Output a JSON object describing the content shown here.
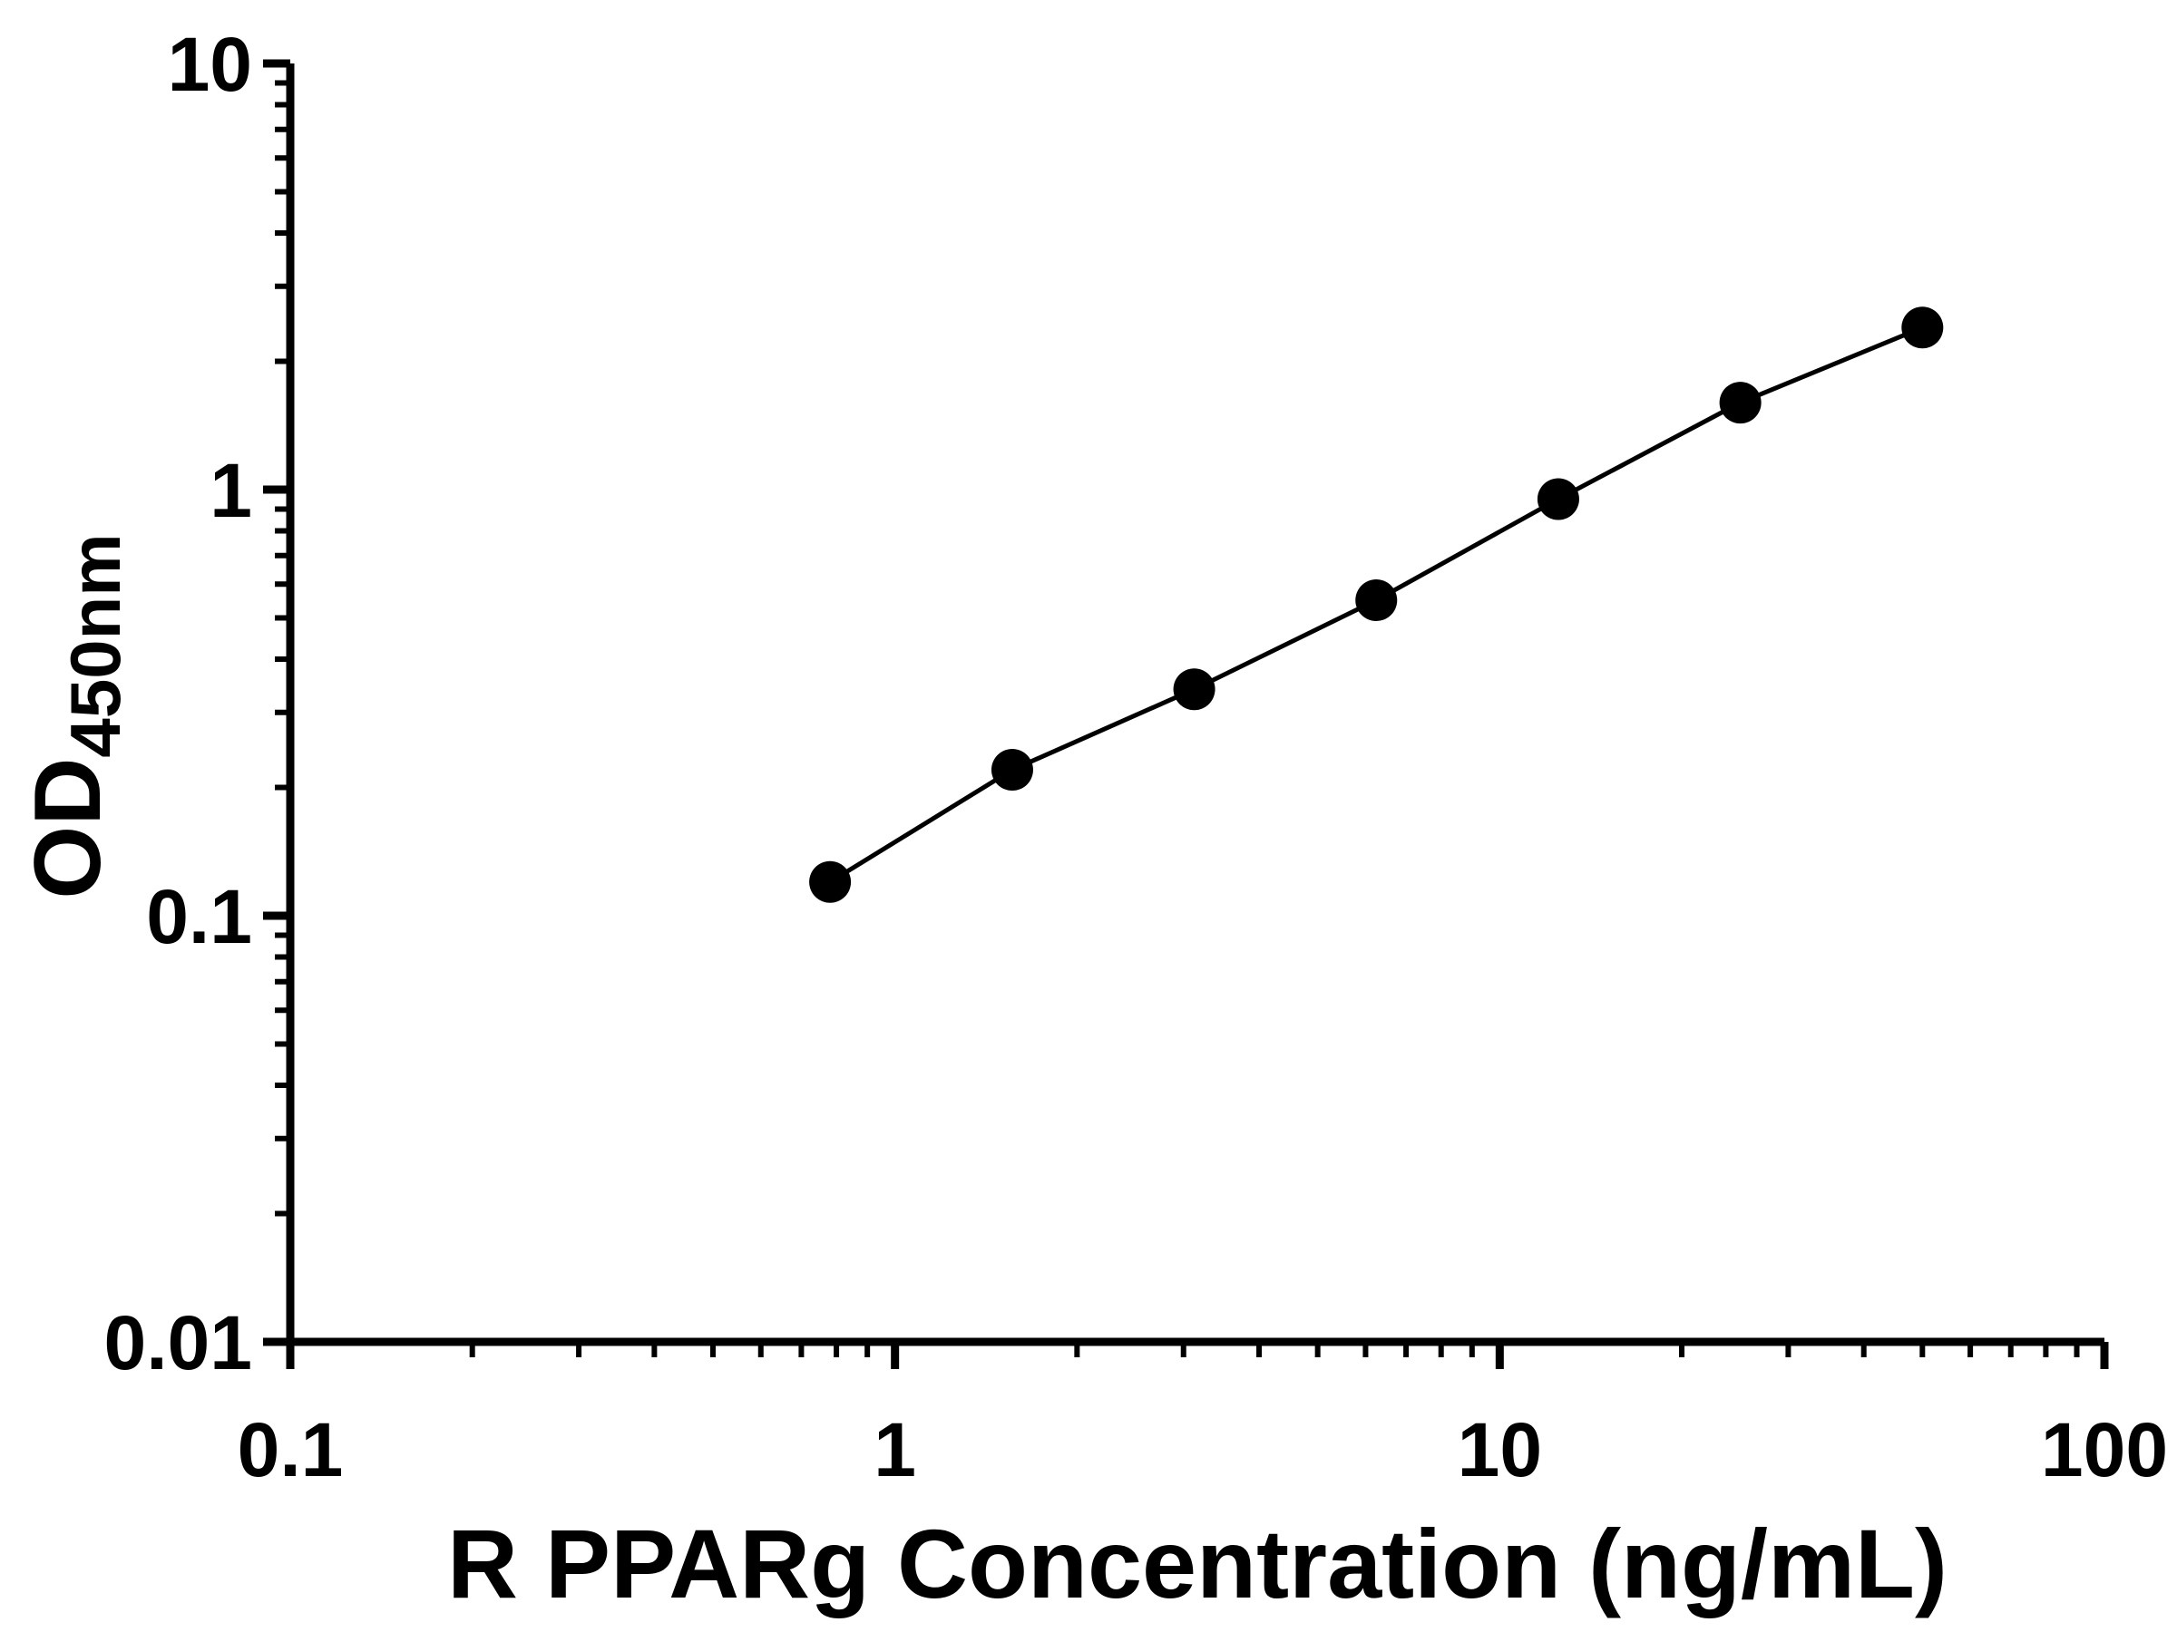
{
  "chart_data": {
    "type": "scatter",
    "title": "",
    "xlabel": "R PPARg Concentration (ng/mL)",
    "ylabel_main": "OD",
    "ylabel_sub": "450nm",
    "xscale": "log",
    "yscale": "log",
    "xlim": [
      0.1,
      100
    ],
    "ylim": [
      0.01,
      10
    ],
    "x": [
      0.781,
      1.563,
      3.125,
      6.25,
      12.5,
      25,
      50
    ],
    "y": [
      0.12,
      0.22,
      0.34,
      0.55,
      0.95,
      1.6,
      2.4
    ],
    "x_ticks": [
      {
        "v": 0.1,
        "label": "0.1"
      },
      {
        "v": 1,
        "label": "1"
      },
      {
        "v": 10,
        "label": "10"
      },
      {
        "v": 100,
        "label": "100"
      }
    ],
    "y_ticks": [
      {
        "v": 0.01,
        "label": "0.01"
      },
      {
        "v": 0.1,
        "label": "0.1"
      },
      {
        "v": 1,
        "label": "1"
      },
      {
        "v": 10,
        "label": "10"
      }
    ],
    "marker": "circle",
    "marker_color": "#000000",
    "line_color": "#000000",
    "axis_color": "#000000",
    "background_color": "#ffffff",
    "grid": "off",
    "legend": "none"
  }
}
